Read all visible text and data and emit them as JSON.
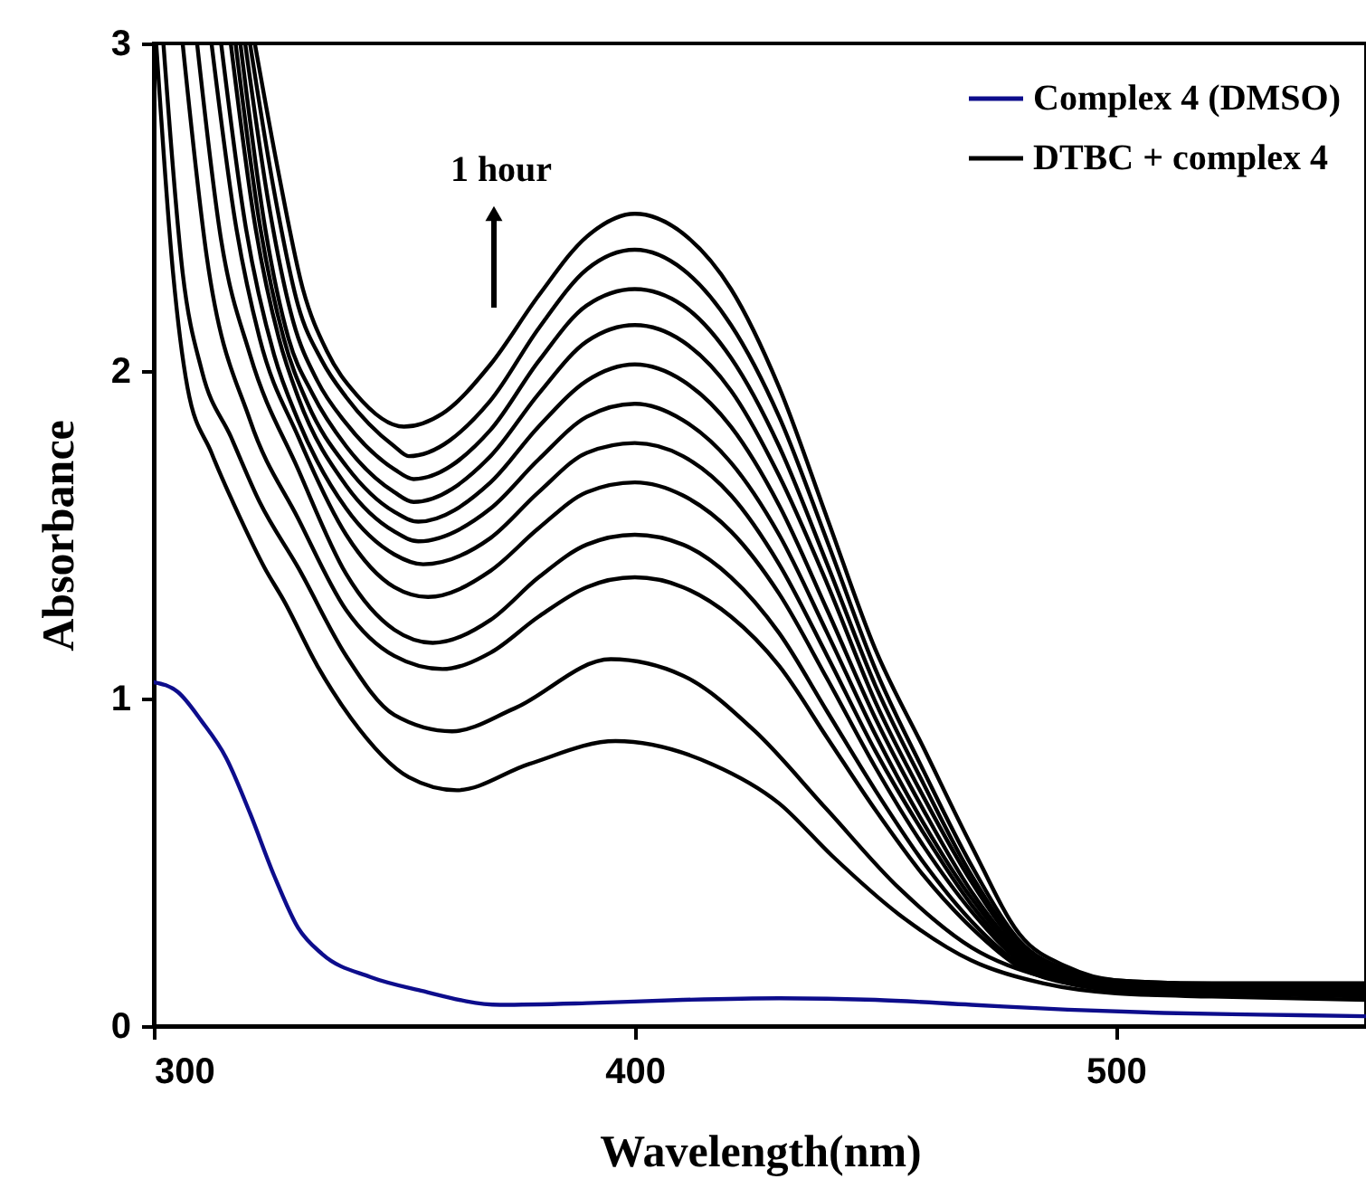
{
  "chart_data": {
    "type": "line",
    "xlabel": "Wavelength(nm)",
    "ylabel": "Absorbance",
    "xlim": [
      300,
      552
    ],
    "xticks": [
      300,
      400,
      500
    ],
    "ylim": [
      0,
      3
    ],
    "yticks": [
      0,
      1,
      2,
      3
    ],
    "legend": "top right",
    "annotations": [
      "1 hour"
    ],
    "series": [
      {
        "name": "Complex 4 (DMSO)",
        "color": "#0d0d8c",
        "x": [
          300,
          305,
          310,
          315,
          320,
          325,
          330,
          335,
          345,
          355,
          372,
          390,
          410,
          430,
          450,
          470,
          490,
          510,
          530,
          552
        ],
        "values": [
          1.05,
          1.02,
          0.93,
          0.82,
          0.65,
          0.46,
          0.3,
          0.22,
          0.15,
          0.11,
          0.065,
          0.07,
          0.08,
          0.085,
          0.08,
          0.065,
          0.05,
          0.04,
          0.035,
          0.03
        ]
      },
      {
        "name": "DTBC + complex 4",
        "color": "#000000",
        "x": [
          300.5,
          304,
          307,
          312,
          318,
          323,
          327,
          334,
          341,
          353,
          363,
          378,
          396,
          416,
          430,
          441,
          455,
          470,
          485,
          500,
          520,
          552
        ],
        "values": [
          3.0,
          2.3,
          1.95,
          1.75,
          1.55,
          1.4,
          1.3,
          1.1,
          0.94,
          0.76,
          0.72,
          0.8,
          0.87,
          0.8,
          0.68,
          0.52,
          0.34,
          0.2,
          0.13,
          0.1,
          0.09,
          0.08
        ]
      },
      {
        "color": "#000000",
        "x": [
          302,
          306,
          310,
          316,
          322,
          330,
          340,
          350,
          362,
          375,
          395,
          410,
          425,
          440,
          455,
          470,
          485,
          500,
          520,
          552
        ],
        "values": [
          3.0,
          2.3,
          2.0,
          1.8,
          1.6,
          1.4,
          1.13,
          0.95,
          0.9,
          0.97,
          1.12,
          1.07,
          0.9,
          0.66,
          0.42,
          0.24,
          0.15,
          0.11,
          0.1,
          0.09
        ]
      },
      {
        "color": "#000000",
        "x": [
          306,
          311,
          320,
          330,
          340,
          350,
          360,
          370,
          380,
          390,
          400,
          410,
          420,
          430,
          440,
          450,
          460,
          470,
          480,
          490,
          500,
          520,
          552
        ],
        "values": [
          3.0,
          2.35,
          1.85,
          1.55,
          1.27,
          1.13,
          1.09,
          1.14,
          1.25,
          1.34,
          1.37,
          1.34,
          1.25,
          1.1,
          0.88,
          0.66,
          0.46,
          0.3,
          0.18,
          0.13,
          0.11,
          0.1,
          0.1
        ]
      },
      {
        "color": "#000000",
        "x": [
          309,
          314,
          320,
          330,
          340,
          350,
          358,
          370,
          380,
          390,
          400,
          410,
          420,
          430,
          440,
          450,
          460,
          470,
          480,
          490,
          500,
          520,
          552
        ],
        "values": [
          3.0,
          2.4,
          2.05,
          1.7,
          1.38,
          1.21,
          1.17,
          1.24,
          1.37,
          1.47,
          1.5,
          1.47,
          1.37,
          1.2,
          0.96,
          0.72,
          0.5,
          0.32,
          0.19,
          0.14,
          0.12,
          0.11,
          0.11
        ]
      },
      {
        "color": "#000000",
        "x": [
          312,
          317,
          322,
          330,
          340,
          350,
          357,
          370,
          380,
          390,
          400,
          410,
          420,
          430,
          440,
          450,
          460,
          470,
          480,
          490,
          500,
          520,
          552
        ],
        "values": [
          3.0,
          2.45,
          2.1,
          1.8,
          1.5,
          1.34,
          1.31,
          1.39,
          1.52,
          1.63,
          1.66,
          1.62,
          1.51,
          1.32,
          1.06,
          0.79,
          0.55,
          0.35,
          0.2,
          0.14,
          0.12,
          0.11,
          0.11
        ]
      },
      {
        "color": "#000000",
        "x": [
          314,
          319,
          325,
          330,
          340,
          350,
          356,
          370,
          380,
          390,
          400,
          410,
          420,
          430,
          440,
          450,
          460,
          470,
          480,
          490,
          500,
          520,
          552
        ],
        "values": [
          3.0,
          2.45,
          2.05,
          1.85,
          1.58,
          1.44,
          1.41,
          1.49,
          1.63,
          1.75,
          1.78,
          1.74,
          1.62,
          1.41,
          1.13,
          0.84,
          0.59,
          0.37,
          0.21,
          0.15,
          0.12,
          0.12,
          0.12
        ]
      },
      {
        "color": "#000000",
        "x": [
          316,
          321,
          326,
          330,
          340,
          350,
          355,
          370,
          380,
          390,
          400,
          410,
          420,
          430,
          440,
          450,
          460,
          470,
          480,
          490,
          500,
          520,
          552
        ],
        "values": [
          3.0,
          2.45,
          2.1,
          1.92,
          1.65,
          1.51,
          1.48,
          1.58,
          1.73,
          1.86,
          1.9,
          1.85,
          1.72,
          1.5,
          1.2,
          0.89,
          0.62,
          0.39,
          0.22,
          0.15,
          0.12,
          0.12,
          0.12
        ]
      },
      {
        "color": "#000000",
        "x": [
          317,
          322,
          327,
          332,
          340,
          350,
          355,
          370,
          380,
          390,
          400,
          410,
          420,
          430,
          440,
          450,
          460,
          470,
          480,
          490,
          500,
          520,
          552
        ],
        "values": [
          3.0,
          2.45,
          2.1,
          1.9,
          1.71,
          1.57,
          1.54,
          1.66,
          1.83,
          1.97,
          2.02,
          1.97,
          1.83,
          1.59,
          1.27,
          0.94,
          0.66,
          0.41,
          0.23,
          0.16,
          0.13,
          0.12,
          0.12
        ]
      },
      {
        "color": "#000000",
        "x": [
          318,
          323,
          328,
          333,
          340,
          350,
          354,
          370,
          380,
          390,
          400,
          410,
          420,
          430,
          440,
          450,
          460,
          470,
          480,
          490,
          500,
          520,
          552
        ],
        "values": [
          3.0,
          2.45,
          2.1,
          1.93,
          1.77,
          1.63,
          1.6,
          1.74,
          1.93,
          2.09,
          2.14,
          2.09,
          1.94,
          1.68,
          1.35,
          0.99,
          0.7,
          0.44,
          0.24,
          0.16,
          0.13,
          0.12,
          0.12
        ]
      },
      {
        "color": "#000000",
        "x": [
          319,
          324,
          329,
          334,
          340,
          350,
          354,
          370,
          380,
          390,
          400,
          410,
          420,
          430,
          440,
          450,
          460,
          470,
          480,
          490,
          500,
          520,
          552
        ],
        "values": [
          3.0,
          2.5,
          2.15,
          1.97,
          1.84,
          1.7,
          1.67,
          1.82,
          2.03,
          2.2,
          2.25,
          2.2,
          2.04,
          1.77,
          1.41,
          1.04,
          0.74,
          0.46,
          0.25,
          0.17,
          0.13,
          0.13,
          0.13
        ]
      },
      {
        "color": "#000000",
        "x": [
          320,
          325,
          330,
          335,
          340,
          350,
          353,
          370,
          380,
          390,
          400,
          410,
          420,
          430,
          440,
          450,
          460,
          470,
          480,
          490,
          500,
          520,
          552
        ],
        "values": [
          3.0,
          2.55,
          2.2,
          2.03,
          1.92,
          1.77,
          1.74,
          1.91,
          2.13,
          2.31,
          2.37,
          2.31,
          2.14,
          1.86,
          1.48,
          1.09,
          0.78,
          0.49,
          0.26,
          0.17,
          0.14,
          0.13,
          0.13
        ]
      },
      {
        "color": "#000000",
        "x": [
          321,
          326,
          331,
          336,
          342,
          352,
          360,
          370,
          380,
          390,
          400,
          410,
          420,
          430,
          440,
          450,
          460,
          470,
          480,
          490,
          500,
          520,
          552
        ],
        "values": [
          3.0,
          2.6,
          2.25,
          2.06,
          1.93,
          1.83,
          1.87,
          2.02,
          2.23,
          2.41,
          2.48,
          2.42,
          2.25,
          1.95,
          1.55,
          1.15,
          0.85,
          0.55,
          0.28,
          0.18,
          0.14,
          0.13,
          0.13
        ]
      }
    ]
  }
}
